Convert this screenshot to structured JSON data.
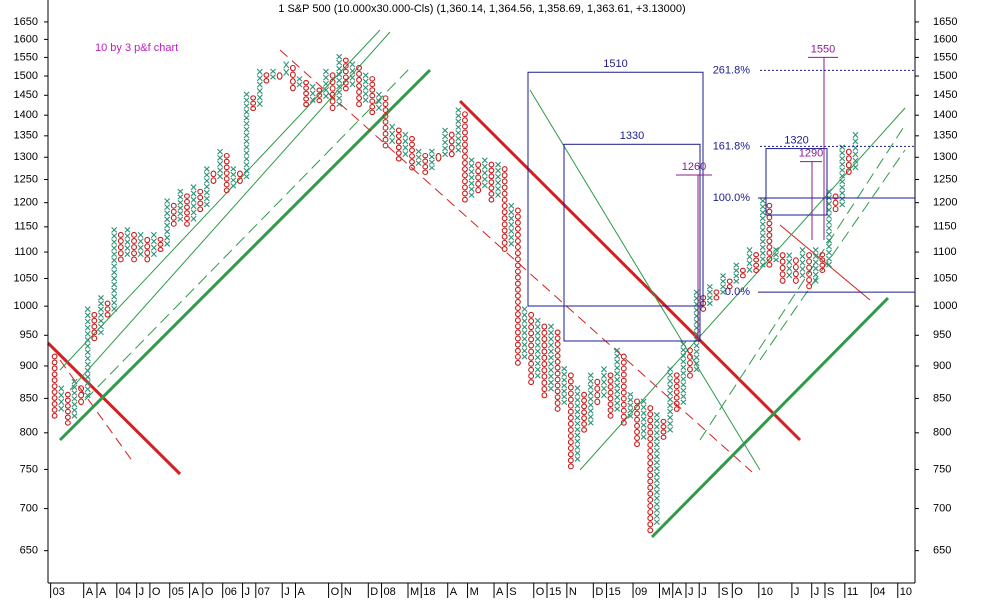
{
  "chart_data": {
    "type": "point-figure",
    "title": "1 S&P 500 (10.000x30.000-Cls) (1,360.14, 1,364.56, 1,358.69, 1,363.61, +3.13000)",
    "subtitle": "10 by 3 p&f chart",
    "log_scale": true,
    "ylim": [
      614,
      1715
    ],
    "yticks": [
      650,
      700,
      750,
      800,
      850,
      900,
      950,
      1000,
      1050,
      1100,
      1150,
      1200,
      1250,
      1300,
      1350,
      1400,
      1450,
      1500,
      1550,
      1600,
      1650
    ],
    "xlim": [
      -1,
      130
    ],
    "xticks": [
      {
        "value": 0,
        "label": "03"
      },
      {
        "value": 5,
        "label": "A"
      },
      {
        "value": 7,
        "label": "A"
      },
      {
        "value": 10,
        "label": "04"
      },
      {
        "value": 13,
        "label": "J"
      },
      {
        "value": 15,
        "label": "O"
      },
      {
        "value": 18,
        "label": "05"
      },
      {
        "value": 21,
        "label": "A"
      },
      {
        "value": 23,
        "label": "O"
      },
      {
        "value": 26,
        "label": "06"
      },
      {
        "value": 29,
        "label": "J"
      },
      {
        "value": 31,
        "label": "07"
      },
      {
        "value": 35,
        "label": "J"
      },
      {
        "value": 37,
        "label": "A"
      },
      {
        "value": 42,
        "label": "O"
      },
      {
        "value": 44,
        "label": "N"
      },
      {
        "value": 48,
        "label": "D"
      },
      {
        "value": 50,
        "label": "08"
      },
      {
        "value": 54,
        "label": "M"
      },
      {
        "value": 56,
        "label": "18"
      },
      {
        "value": 60,
        "label": "A"
      },
      {
        "value": 63,
        "label": "M"
      },
      {
        "value": 67,
        "label": "A"
      },
      {
        "value": 69,
        "label": "S"
      },
      {
        "value": 73,
        "label": "O"
      },
      {
        "value": 75,
        "label": "15"
      },
      {
        "value": 78,
        "label": "N"
      },
      {
        "value": 82,
        "label": "D"
      },
      {
        "value": 84,
        "label": "15"
      },
      {
        "value": 88,
        "label": "09"
      },
      {
        "value": 92,
        "label": "M"
      },
      {
        "value": 94,
        "label": "A"
      },
      {
        "value": 96,
        "label": "J"
      },
      {
        "value": 98,
        "label": "J"
      },
      {
        "value": 101,
        "label": "S"
      },
      {
        "value": 103,
        "label": "O"
      },
      {
        "value": 107,
        "label": "10"
      },
      {
        "value": 112,
        "label": "J"
      },
      {
        "value": 115,
        "label": "J"
      },
      {
        "value": 117,
        "label": "S"
      },
      {
        "value": 120,
        "label": "11"
      },
      {
        "value": 124,
        "label": "04"
      },
      {
        "value": 128,
        "label": "10"
      }
    ],
    "x_color": "#2e9478",
    "o_color": "#cc1c1c",
    "columns": [
      {
        "kind": "O",
        "x": 0,
        "low": 820,
        "high": 920
      },
      {
        "kind": "X",
        "x": 1,
        "low": 830,
        "high": 870
      },
      {
        "kind": "O",
        "x": 2,
        "low": 810,
        "high": 860
      },
      {
        "kind": "X",
        "x": 3,
        "low": 820,
        "high": 880
      },
      {
        "kind": "O",
        "x": 4,
        "low": 840,
        "high": 870
      },
      {
        "kind": "X",
        "x": 5,
        "low": 850,
        "high": 1000
      },
      {
        "kind": "O",
        "x": 6,
        "low": 940,
        "high": 990
      },
      {
        "kind": "X",
        "x": 7,
        "low": 950,
        "high": 1020
      },
      {
        "kind": "O",
        "x": 8,
        "low": 980,
        "high": 1010
      },
      {
        "kind": "X",
        "x": 9,
        "low": 990,
        "high": 1150
      },
      {
        "kind": "O",
        "x": 10,
        "low": 1080,
        "high": 1140
      },
      {
        "kind": "X",
        "x": 11,
        "low": 1090,
        "high": 1150
      },
      {
        "kind": "O",
        "x": 12,
        "low": 1080,
        "high": 1140
      },
      {
        "kind": "X",
        "x": 13,
        "low": 1090,
        "high": 1140
      },
      {
        "kind": "O",
        "x": 14,
        "low": 1080,
        "high": 1130
      },
      {
        "kind": "X",
        "x": 15,
        "low": 1090,
        "high": 1140
      },
      {
        "kind": "O",
        "x": 16,
        "low": 1100,
        "high": 1130
      },
      {
        "kind": "X",
        "x": 17,
        "low": 1110,
        "high": 1210
      },
      {
        "kind": "O",
        "x": 18,
        "low": 1150,
        "high": 1200
      },
      {
        "kind": "X",
        "x": 19,
        "low": 1160,
        "high": 1230
      },
      {
        "kind": "O",
        "x": 20,
        "low": 1150,
        "high": 1220
      },
      {
        "kind": "X",
        "x": 21,
        "low": 1160,
        "high": 1240
      },
      {
        "kind": "O",
        "x": 22,
        "low": 1180,
        "high": 1230
      },
      {
        "kind": "X",
        "x": 23,
        "low": 1190,
        "high": 1280
      },
      {
        "kind": "O",
        "x": 24,
        "low": 1240,
        "high": 1270
      },
      {
        "kind": "X",
        "x": 25,
        "low": 1250,
        "high": 1320
      },
      {
        "kind": "O",
        "x": 26,
        "low": 1220,
        "high": 1310
      },
      {
        "kind": "X",
        "x": 27,
        "low": 1230,
        "high": 1280
      },
      {
        "kind": "O",
        "x": 28,
        "low": 1240,
        "high": 1270
      },
      {
        "kind": "X",
        "x": 29,
        "low": 1250,
        "high": 1460
      },
      {
        "kind": "O",
        "x": 30,
        "low": 1410,
        "high": 1450
      },
      {
        "kind": "X",
        "x": 31,
        "low": 1420,
        "high": 1520
      },
      {
        "kind": "O",
        "x": 32,
        "low": 1480,
        "high": 1510
      },
      {
        "kind": "X",
        "x": 33,
        "low": 1490,
        "high": 1520
      },
      {
        "kind": "O",
        "x": 34,
        "low": 1490,
        "high": 1510
      },
      {
        "kind": "X",
        "x": 35,
        "low": 1500,
        "high": 1540
      },
      {
        "kind": "O",
        "x": 36,
        "low": 1460,
        "high": 1530
      },
      {
        "kind": "X",
        "x": 37,
        "low": 1470,
        "high": 1500
      },
      {
        "kind": "O",
        "x": 38,
        "low": 1420,
        "high": 1490
      },
      {
        "kind": "X",
        "x": 39,
        "low": 1430,
        "high": 1480
      },
      {
        "kind": "O",
        "x": 40,
        "low": 1430,
        "high": 1470
      },
      {
        "kind": "X",
        "x": 41,
        "low": 1440,
        "high": 1520
      },
      {
        "kind": "O",
        "x": 42,
        "low": 1410,
        "high": 1510
      },
      {
        "kind": "X",
        "x": 43,
        "low": 1420,
        "high": 1560
      },
      {
        "kind": "O",
        "x": 44,
        "low": 1460,
        "high": 1550
      },
      {
        "kind": "X",
        "x": 45,
        "low": 1470,
        "high": 1540
      },
      {
        "kind": "O",
        "x": 46,
        "low": 1420,
        "high": 1530
      },
      {
        "kind": "X",
        "x": 47,
        "low": 1430,
        "high": 1510
      },
      {
        "kind": "O",
        "x": 48,
        "low": 1400,
        "high": 1500
      },
      {
        "kind": "X",
        "x": 49,
        "low": 1410,
        "high": 1460
      },
      {
        "kind": "O",
        "x": 50,
        "low": 1320,
        "high": 1450
      },
      {
        "kind": "X",
        "x": 51,
        "low": 1330,
        "high": 1380
      },
      {
        "kind": "O",
        "x": 52,
        "low": 1290,
        "high": 1370
      },
      {
        "kind": "X",
        "x": 53,
        "low": 1300,
        "high": 1360
      },
      {
        "kind": "O",
        "x": 54,
        "low": 1270,
        "high": 1350
      },
      {
        "kind": "X",
        "x": 55,
        "low": 1280,
        "high": 1320
      },
      {
        "kind": "O",
        "x": 56,
        "low": 1260,
        "high": 1310
      },
      {
        "kind": "X",
        "x": 57,
        "low": 1270,
        "high": 1320
      },
      {
        "kind": "O",
        "x": 58,
        "low": 1290,
        "high": 1310
      },
      {
        "kind": "X",
        "x": 59,
        "low": 1300,
        "high": 1370
      },
      {
        "kind": "O",
        "x": 60,
        "low": 1300,
        "high": 1360
      },
      {
        "kind": "X",
        "x": 61,
        "low": 1310,
        "high": 1420
      },
      {
        "kind": "O",
        "x": 62,
        "low": 1200,
        "high": 1410
      },
      {
        "kind": "X",
        "x": 63,
        "low": 1210,
        "high": 1300
      },
      {
        "kind": "O",
        "x": 64,
        "low": 1220,
        "high": 1290
      },
      {
        "kind": "X",
        "x": 65,
        "low": 1230,
        "high": 1300
      },
      {
        "kind": "O",
        "x": 66,
        "low": 1200,
        "high": 1290
      },
      {
        "kind": "X",
        "x": 67,
        "low": 1210,
        "high": 1290
      },
      {
        "kind": "O",
        "x": 68,
        "low": 1100,
        "high": 1280
      },
      {
        "kind": "X",
        "x": 69,
        "low": 1110,
        "high": 1200
      },
      {
        "kind": "O",
        "x": 70,
        "low": 900,
        "high": 1190
      },
      {
        "kind": "X",
        "x": 71,
        "low": 910,
        "high": 1000
      },
      {
        "kind": "O",
        "x": 72,
        "low": 870,
        "high": 990
      },
      {
        "kind": "X",
        "x": 73,
        "low": 880,
        "high": 980
      },
      {
        "kind": "O",
        "x": 74,
        "low": 850,
        "high": 970
      },
      {
        "kind": "X",
        "x": 75,
        "low": 860,
        "high": 970
      },
      {
        "kind": "O",
        "x": 76,
        "low": 830,
        "high": 960
      },
      {
        "kind": "X",
        "x": 77,
        "low": 840,
        "high": 900
      },
      {
        "kind": "O",
        "x": 78,
        "low": 750,
        "high": 890
      },
      {
        "kind": "X",
        "x": 79,
        "low": 760,
        "high": 870
      },
      {
        "kind": "O",
        "x": 80,
        "low": 800,
        "high": 860
      },
      {
        "kind": "X",
        "x": 81,
        "low": 810,
        "high": 890
      },
      {
        "kind": "O",
        "x": 82,
        "low": 840,
        "high": 880
      },
      {
        "kind": "X",
        "x": 83,
        "low": 850,
        "high": 900
      },
      {
        "kind": "O",
        "x": 84,
        "low": 820,
        "high": 890
      },
      {
        "kind": "X",
        "x": 85,
        "low": 830,
        "high": 930
      },
      {
        "kind": "O",
        "x": 86,
        "low": 810,
        "high": 920
      },
      {
        "kind": "X",
        "x": 87,
        "low": 820,
        "high": 860
      },
      {
        "kind": "O",
        "x": 88,
        "low": 780,
        "high": 850
      },
      {
        "kind": "X",
        "x": 89,
        "low": 790,
        "high": 850
      },
      {
        "kind": "O",
        "x": 90,
        "low": 670,
        "high": 840
      },
      {
        "kind": "X",
        "x": 91,
        "low": 680,
        "high": 830
      },
      {
        "kind": "O",
        "x": 92,
        "low": 790,
        "high": 820
      },
      {
        "kind": "X",
        "x": 93,
        "low": 800,
        "high": 900
      },
      {
        "kind": "O",
        "x": 94,
        "low": 830,
        "high": 890
      },
      {
        "kind": "X",
        "x": 95,
        "low": 840,
        "high": 940
      },
      {
        "kind": "O",
        "x": 96,
        "low": 880,
        "high": 930
      },
      {
        "kind": "X",
        "x": 97,
        "low": 890,
        "high": 1030
      },
      {
        "kind": "O",
        "x": 98,
        "low": 990,
        "high": 1020
      },
      {
        "kind": "X",
        "x": 99,
        "low": 1000,
        "high": 1040
      },
      {
        "kind": "O",
        "x": 100,
        "low": 1010,
        "high": 1030
      },
      {
        "kind": "X",
        "x": 101,
        "low": 1020,
        "high": 1060
      },
      {
        "kind": "O",
        "x": 102,
        "low": 1030,
        "high": 1050
      },
      {
        "kind": "X",
        "x": 103,
        "low": 1040,
        "high": 1080
      },
      {
        "kind": "O",
        "x": 104,
        "low": 1050,
        "high": 1070
      },
      {
        "kind": "X",
        "x": 105,
        "low": 1060,
        "high": 1110
      },
      {
        "kind": "O",
        "x": 106,
        "low": 1060,
        "high": 1100
      },
      {
        "kind": "X",
        "x": 107,
        "low": 1070,
        "high": 1210
      },
      {
        "kind": "O",
        "x": 108,
        "low": 1070,
        "high": 1200
      },
      {
        "kind": "X",
        "x": 109,
        "low": 1080,
        "high": 1110
      },
      {
        "kind": "O",
        "x": 110,
        "low": 1040,
        "high": 1100
      },
      {
        "kind": "X",
        "x": 111,
        "low": 1050,
        "high": 1100
      },
      {
        "kind": "O",
        "x": 112,
        "low": 1040,
        "high": 1090
      },
      {
        "kind": "X",
        "x": 113,
        "low": 1050,
        "high": 1110
      },
      {
        "kind": "O",
        "x": 114,
        "low": 1030,
        "high": 1100
      },
      {
        "kind": "X",
        "x": 115,
        "low": 1040,
        "high": 1110
      },
      {
        "kind": "O",
        "x": 116,
        "low": 1060,
        "high": 1100
      },
      {
        "kind": "X",
        "x": 117,
        "low": 1070,
        "high": 1230
      },
      {
        "kind": "O",
        "x": 118,
        "low": 1180,
        "high": 1220
      },
      {
        "kind": "X",
        "x": 119,
        "low": 1190,
        "high": 1330
      },
      {
        "kind": "O",
        "x": 120,
        "low": 1260,
        "high": 1320
      },
      {
        "kind": "X",
        "x": 121,
        "low": 1270,
        "high": 1360
      }
    ],
    "targets": [
      1510,
      1330,
      1260,
      1320,
      1290,
      1550
    ],
    "fib_levels": [
      {
        "text": "261.8%",
        "price": 1515
      },
      {
        "text": "161.8%",
        "price": 1325
      },
      {
        "text": "100.0%",
        "price": 1210
      },
      {
        "text": "0.0%",
        "price": 1025
      }
    ]
  }
}
